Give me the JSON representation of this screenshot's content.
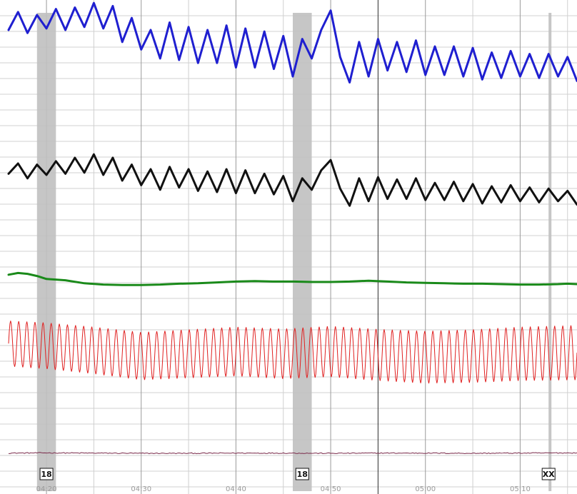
{
  "chart_data": {
    "type": "line",
    "title": "",
    "xlabel": "",
    "ylabel": "",
    "grid": true,
    "colors": {
      "background": "#ffffff",
      "grid_major": "#9a9a9a",
      "grid_minor": "#d0d0d0",
      "highlight_band": "#c0c0c0",
      "cursor": "#333333",
      "tick_label": "#9a9a9a"
    },
    "x_axis": {
      "unit": "mm:ss",
      "range": [
        "04:16",
        "05:16"
      ],
      "ticks": [
        "04:20",
        "04:30",
        "04:40",
        "04:50",
        "05:00",
        "05:10"
      ]
    },
    "cursor_time": "04:55",
    "highlight_bands": [
      {
        "label": "18",
        "start": "04:19",
        "end": "04:21"
      },
      {
        "label": "18",
        "start": "04:46",
        "end": "04:48"
      },
      {
        "label": "XX",
        "start": "05:13",
        "end": "05:13"
      }
    ],
    "series": [
      {
        "color": "#1f1fd0",
        "points": [
          [
            "04:16",
            8.0
          ],
          [
            "04:17",
            9.2
          ],
          [
            "04:18",
            7.8
          ],
          [
            "04:19",
            9.0
          ],
          [
            "04:20",
            8.1
          ],
          [
            "04:21",
            9.4
          ],
          [
            "04:22",
            8.0
          ],
          [
            "04:23",
            9.5
          ],
          [
            "04:24",
            8.2
          ],
          [
            "04:25",
            9.8
          ],
          [
            "04:26",
            8.1
          ],
          [
            "04:27",
            9.6
          ],
          [
            "04:28",
            7.2
          ],
          [
            "04:29",
            8.8
          ],
          [
            "04:30",
            6.7
          ],
          [
            "04:31",
            8.0
          ],
          [
            "04:32",
            6.1
          ],
          [
            "04:33",
            8.5
          ],
          [
            "04:34",
            6.0
          ],
          [
            "04:35",
            8.2
          ],
          [
            "04:36",
            5.8
          ],
          [
            "04:37",
            8.0
          ],
          [
            "04:38",
            5.8
          ],
          [
            "04:39",
            8.3
          ],
          [
            "04:40",
            5.5
          ],
          [
            "04:41",
            8.1
          ],
          [
            "04:42",
            5.5
          ],
          [
            "04:43",
            7.9
          ],
          [
            "04:44",
            5.4
          ],
          [
            "04:45",
            7.6
          ],
          [
            "04:46",
            4.9
          ],
          [
            "04:47",
            7.4
          ],
          [
            "04:48",
            6.1
          ],
          [
            "04:49",
            8.0
          ],
          [
            "04:50",
            9.3
          ],
          [
            "04:51",
            6.2
          ],
          [
            "04:52",
            4.5
          ],
          [
            "04:53",
            7.2
          ],
          [
            "04:54",
            4.9
          ],
          [
            "04:55",
            7.4
          ],
          [
            "04:56",
            5.3
          ],
          [
            "04:57",
            7.2
          ],
          [
            "04:58",
            5.2
          ],
          [
            "04:59",
            7.3
          ],
          [
            "05:00",
            5.0
          ],
          [
            "05:01",
            6.9
          ],
          [
            "05:02",
            5.0
          ],
          [
            "05:03",
            6.9
          ],
          [
            "05:04",
            4.9
          ],
          [
            "05:05",
            6.8
          ],
          [
            "05:06",
            4.7
          ],
          [
            "05:07",
            6.5
          ],
          [
            "05:08",
            4.8
          ],
          [
            "05:09",
            6.6
          ],
          [
            "05:10",
            4.9
          ],
          [
            "05:11",
            6.4
          ],
          [
            "05:12",
            4.8
          ],
          [
            "05:13",
            6.4
          ],
          [
            "05:14",
            4.9
          ],
          [
            "05:15",
            6.2
          ],
          [
            "05:16",
            4.6
          ]
        ]
      },
      {
        "color": "#111111",
        "points": [
          [
            "04:16",
            7.6
          ],
          [
            "04:17",
            8.5
          ],
          [
            "04:18",
            7.2
          ],
          [
            "04:19",
            8.4
          ],
          [
            "04:20",
            7.5
          ],
          [
            "04:21",
            8.7
          ],
          [
            "04:22",
            7.6
          ],
          [
            "04:23",
            9.0
          ],
          [
            "04:24",
            7.7
          ],
          [
            "04:25",
            9.3
          ],
          [
            "04:26",
            7.5
          ],
          [
            "04:27",
            9.0
          ],
          [
            "04:28",
            7.0
          ],
          [
            "04:29",
            8.4
          ],
          [
            "04:30",
            6.6
          ],
          [
            "04:31",
            8.0
          ],
          [
            "04:32",
            6.2
          ],
          [
            "04:33",
            8.2
          ],
          [
            "04:34",
            6.4
          ],
          [
            "04:35",
            8.0
          ],
          [
            "04:36",
            6.1
          ],
          [
            "04:37",
            7.8
          ],
          [
            "04:38",
            6.0
          ],
          [
            "04:39",
            8.0
          ],
          [
            "04:40",
            5.9
          ],
          [
            "04:41",
            7.9
          ],
          [
            "04:42",
            5.9
          ],
          [
            "04:43",
            7.6
          ],
          [
            "04:44",
            5.8
          ],
          [
            "04:45",
            7.4
          ],
          [
            "04:46",
            5.2
          ],
          [
            "04:47",
            7.2
          ],
          [
            "04:48",
            6.2
          ],
          [
            "04:49",
            7.9
          ],
          [
            "04:50",
            8.8
          ],
          [
            "04:51",
            6.3
          ],
          [
            "04:52",
            4.8
          ],
          [
            "04:53",
            7.2
          ],
          [
            "04:54",
            5.2
          ],
          [
            "04:55",
            7.3
          ],
          [
            "04:56",
            5.4
          ],
          [
            "04:57",
            7.1
          ],
          [
            "04:58",
            5.4
          ],
          [
            "04:59",
            7.2
          ],
          [
            "05:00",
            5.3
          ],
          [
            "05:01",
            6.8
          ],
          [
            "05:02",
            5.3
          ],
          [
            "05:03",
            6.9
          ],
          [
            "05:04",
            5.2
          ],
          [
            "05:05",
            6.7
          ],
          [
            "05:06",
            5.0
          ],
          [
            "05:07",
            6.5
          ],
          [
            "05:08",
            5.1
          ],
          [
            "05:09",
            6.6
          ],
          [
            "05:10",
            5.2
          ],
          [
            "05:11",
            6.4
          ],
          [
            "05:12",
            5.1
          ],
          [
            "05:13",
            6.3
          ],
          [
            "05:14",
            5.2
          ],
          [
            "05:15",
            6.1
          ],
          [
            "05:16",
            4.9
          ]
        ]
      },
      {
        "color": "#1a8a1a",
        "points": [
          [
            "04:16",
            9.2
          ],
          [
            "04:17",
            9.6
          ],
          [
            "04:18",
            9.4
          ],
          [
            "04:19",
            8.9
          ],
          [
            "04:20",
            8.2
          ],
          [
            "04:22",
            7.9
          ],
          [
            "04:24",
            7.2
          ],
          [
            "04:26",
            6.9
          ],
          [
            "04:28",
            6.8
          ],
          [
            "04:30",
            6.8
          ],
          [
            "04:32",
            6.9
          ],
          [
            "04:34",
            7.1
          ],
          [
            "04:36",
            7.2
          ],
          [
            "04:38",
            7.4
          ],
          [
            "04:40",
            7.6
          ],
          [
            "04:42",
            7.7
          ],
          [
            "04:44",
            7.6
          ],
          [
            "04:46",
            7.6
          ],
          [
            "04:48",
            7.5
          ],
          [
            "04:50",
            7.5
          ],
          [
            "04:52",
            7.6
          ],
          [
            "04:54",
            7.8
          ],
          [
            "04:56",
            7.6
          ],
          [
            "04:58",
            7.4
          ],
          [
            "05:00",
            7.3
          ],
          [
            "05:02",
            7.2
          ],
          [
            "05:04",
            7.1
          ],
          [
            "05:06",
            7.1
          ],
          [
            "05:08",
            7.0
          ],
          [
            "05:10",
            6.9
          ],
          [
            "05:12",
            6.9
          ],
          [
            "05:14",
            7.0
          ],
          [
            "05:15",
            7.1
          ],
          [
            "05:16",
            7.0
          ]
        ]
      },
      {
        "color": "#e02020",
        "oscillation": {
          "cycles": 70,
          "amplitude_start": 2.0,
          "amplitude_end": 2.4
        },
        "midline_points": [
          [
            "04:16",
            6.8
          ],
          [
            "04:20",
            6.6
          ],
          [
            "04:25",
            6.2
          ],
          [
            "04:30",
            5.7
          ],
          [
            "04:35",
            5.9
          ],
          [
            "04:40",
            6.1
          ],
          [
            "04:45",
            5.9
          ],
          [
            "04:50",
            6.1
          ],
          [
            "04:55",
            5.8
          ],
          [
            "05:00",
            5.6
          ],
          [
            "05:05",
            5.7
          ],
          [
            "05:10",
            5.9
          ],
          [
            "05:16",
            6.0
          ]
        ]
      },
      {
        "color": "#7a2a4a",
        "noise": {
          "amplitude": 0.22
        },
        "midline_points": [
          [
            "04:16",
            5.1
          ],
          [
            "04:20",
            5.2
          ],
          [
            "04:25",
            5.1
          ],
          [
            "04:30",
            5.0
          ],
          [
            "04:35",
            5.0
          ],
          [
            "04:40",
            5.1
          ],
          [
            "04:45",
            5.1
          ],
          [
            "04:50",
            5.0
          ],
          [
            "04:55",
            5.1
          ],
          [
            "05:00",
            5.1
          ],
          [
            "05:05",
            5.0
          ],
          [
            "05:10",
            5.1
          ],
          [
            "05:16",
            5.2
          ]
        ]
      }
    ]
  }
}
